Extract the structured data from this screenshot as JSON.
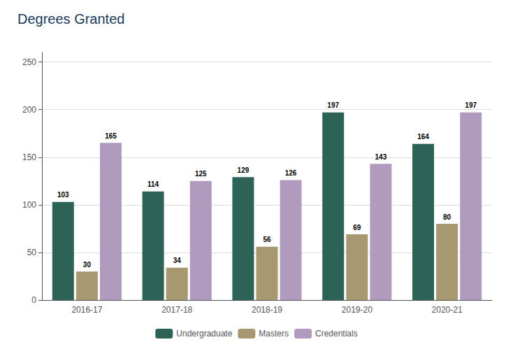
{
  "chart_data": {
    "type": "bar",
    "title": "Degrees Granted",
    "categories": [
      "2016-17",
      "2017-18",
      "2018-19",
      "2019-20",
      "2020-21"
    ],
    "series": [
      {
        "name": "Undergraduate",
        "color": "#2d6357",
        "values": [
          103,
          114,
          129,
          197,
          164
        ]
      },
      {
        "name": "Masters",
        "color": "#a89870",
        "values": [
          30,
          34,
          56,
          69,
          80
        ]
      },
      {
        "name": "Credentials",
        "color": "#b09abe",
        "values": [
          165,
          125,
          126,
          143,
          197
        ]
      }
    ],
    "ylim": [
      0,
      260
    ],
    "yticks": [
      0,
      50,
      100,
      150,
      200,
      250
    ],
    "grid": true,
    "data_labels": true,
    "legend": "bottom"
  }
}
